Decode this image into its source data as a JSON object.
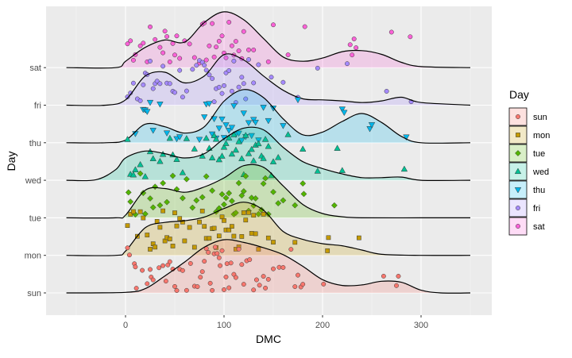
{
  "chart_data": {
    "type": "ridgeline",
    "title": "",
    "xlabel": "DMC",
    "ylabel": "Day",
    "xlim": [
      -80,
      370
    ],
    "x_ticks": [
      0,
      100,
      200,
      300
    ],
    "x_tick_labels": [
      "0",
      "100",
      "200",
      "300"
    ],
    "grid": true,
    "legend_title": "Day",
    "legend_position": "right",
    "categories": [
      "sun",
      "mon",
      "tue",
      "wed",
      "thu",
      "fri",
      "sat"
    ],
    "series": [
      {
        "name": "sun",
        "color": "#F8766D",
        "shape": "circle",
        "density_x": [
          -60,
          0,
          20,
          40,
          60,
          80,
          100,
          120,
          140,
          160,
          180,
          200,
          220,
          240,
          260,
          280,
          300,
          320,
          350
        ],
        "density_y": [
          0.0,
          0.01,
          0.08,
          0.32,
          0.58,
          0.86,
          1.0,
          0.95,
          0.85,
          0.72,
          0.5,
          0.25,
          0.14,
          0.15,
          0.22,
          0.2,
          0.05,
          0.0,
          0.0
        ],
        "points": [
          2,
          4,
          9,
          10,
          11,
          17,
          22,
          25,
          26,
          28,
          34,
          38,
          41,
          43,
          45,
          48,
          50,
          52,
          55,
          58,
          62,
          66,
          70,
          73,
          76,
          78,
          80,
          82,
          84,
          86,
          88,
          90,
          91,
          93,
          95,
          96,
          98,
          100,
          102,
          103,
          105,
          107,
          110,
          112,
          115,
          118,
          120,
          123,
          126,
          130,
          133,
          136,
          140,
          142,
          145,
          150,
          156,
          160,
          168,
          172,
          175,
          178,
          180,
          201,
          262,
          275,
          277
        ]
      },
      {
        "name": "mon",
        "color": "#C49A00",
        "shape": "square",
        "density_x": [
          -60,
          -10,
          0,
          20,
          40,
          60,
          80,
          100,
          120,
          140,
          160,
          180,
          200,
          220,
          240,
          260,
          300,
          350
        ],
        "density_y": [
          0.0,
          0.0,
          0.08,
          0.52,
          0.62,
          0.65,
          0.72,
          0.88,
          1.0,
          0.85,
          0.45,
          0.3,
          0.22,
          0.18,
          0.1,
          0.02,
          0.0,
          0.0
        ],
        "points": [
          2,
          5,
          8,
          12,
          15,
          18,
          22,
          25,
          28,
          30,
          32,
          35,
          38,
          40,
          42,
          45,
          48,
          50,
          52,
          55,
          58,
          60,
          65,
          70,
          75,
          78,
          80,
          82,
          85,
          88,
          90,
          92,
          95,
          98,
          100,
          102,
          105,
          108,
          110,
          112,
          115,
          118,
          120,
          122,
          125,
          128,
          130,
          132,
          135,
          140,
          145,
          150,
          172,
          205,
          206,
          237
        ]
      },
      {
        "name": "tue",
        "color": "#53B400",
        "shape": "diamond",
        "density_x": [
          -60,
          -10,
          0,
          20,
          40,
          60,
          80,
          100,
          120,
          140,
          160,
          180,
          200,
          220,
          240,
          300,
          350
        ],
        "density_y": [
          0.0,
          0.0,
          0.05,
          0.52,
          0.55,
          0.48,
          0.58,
          0.75,
          0.98,
          0.95,
          0.6,
          0.25,
          0.08,
          0.02,
          0.0,
          0.0,
          0.0
        ],
        "points": [
          3,
          5,
          10,
          15,
          18,
          20,
          25,
          28,
          30,
          35,
          38,
          42,
          48,
          52,
          58,
          62,
          68,
          72,
          78,
          82,
          88,
          92,
          95,
          98,
          100,
          102,
          105,
          108,
          110,
          112,
          115,
          118,
          120,
          122,
          125,
          128,
          130,
          132,
          135,
          138,
          140,
          142,
          145,
          150,
          155,
          160,
          172,
          180,
          181,
          212
        ]
      },
      {
        "name": "wed",
        "color": "#00C094",
        "shape": "triangle-up",
        "density_x": [
          -60,
          -30,
          -10,
          0,
          20,
          40,
          60,
          80,
          100,
          120,
          140,
          160,
          180,
          200,
          220,
          240,
          260,
          280,
          300,
          350
        ],
        "density_y": [
          0.0,
          0.01,
          0.2,
          0.42,
          0.55,
          0.5,
          0.42,
          0.5,
          0.78,
          0.98,
          0.95,
          0.62,
          0.35,
          0.22,
          0.12,
          0.05,
          0.05,
          0.06,
          0.0,
          0.0
        ],
        "points": [
          2,
          5,
          8,
          10,
          15,
          20,
          25,
          28,
          35,
          38,
          45,
          48,
          52,
          58,
          62,
          70,
          78,
          82,
          85,
          88,
          90,
          92,
          95,
          98,
          100,
          102,
          105,
          108,
          110,
          112,
          115,
          118,
          120,
          122,
          125,
          128,
          130,
          132,
          135,
          138,
          140,
          142,
          145,
          148,
          150,
          155,
          165,
          180,
          195,
          215,
          220,
          283
        ]
      },
      {
        "name": "thu",
        "color": "#00B6EB",
        "shape": "triangle-down",
        "density_x": [
          -60,
          -20,
          0,
          20,
          40,
          60,
          80,
          100,
          120,
          140,
          160,
          180,
          200,
          220,
          240,
          260,
          280,
          300,
          350
        ],
        "density_y": [
          0.0,
          0.0,
          0.05,
          0.35,
          0.3,
          0.18,
          0.3,
          0.78,
          1.0,
          0.85,
          0.45,
          0.15,
          0.2,
          0.4,
          0.55,
          0.38,
          0.12,
          0.0,
          0.0
        ],
        "points": [
          10,
          18,
          20,
          22,
          25,
          28,
          35,
          42,
          52,
          55,
          75,
          80,
          82,
          85,
          88,
          90,
          92,
          95,
          98,
          100,
          102,
          105,
          108,
          110,
          112,
          115,
          118,
          120,
          122,
          125,
          128,
          130,
          132,
          135,
          140,
          145,
          150,
          160,
          175,
          220,
          222,
          248,
          250,
          285
        ]
      },
      {
        "name": "fri",
        "color": "#A58AFF",
        "shape": "circle",
        "density_x": [
          -60,
          -20,
          0,
          20,
          40,
          60,
          80,
          100,
          120,
          140,
          160,
          180,
          200,
          220,
          240,
          260,
          280,
          300,
          350
        ],
        "density_y": [
          0.0,
          0.0,
          0.1,
          0.55,
          0.62,
          0.42,
          0.55,
          0.95,
          0.85,
          0.55,
          0.28,
          0.12,
          0.1,
          0.08,
          0.05,
          0.08,
          0.15,
          0.05,
          0.0
        ],
        "points": [
          2,
          5,
          8,
          12,
          15,
          18,
          20,
          22,
          25,
          28,
          30,
          32,
          35,
          38,
          42,
          45,
          48,
          50,
          55,
          58,
          62,
          68,
          72,
          75,
          78,
          80,
          82,
          85,
          88,
          90,
          92,
          95,
          98,
          100,
          102,
          105,
          108,
          110,
          112,
          115,
          118,
          120,
          122,
          125,
          130,
          135,
          148,
          160,
          175,
          195,
          225,
          265,
          290
        ]
      },
      {
        "name": "sat",
        "color": "#FB61D7",
        "shape": "circle",
        "density_x": [
          -60,
          -10,
          0,
          20,
          40,
          60,
          80,
          100,
          120,
          140,
          160,
          180,
          200,
          220,
          240,
          260,
          280,
          300,
          350
        ],
        "density_y": [
          0.0,
          0.0,
          0.12,
          0.38,
          0.52,
          0.48,
          0.85,
          1.05,
          0.9,
          0.55,
          0.2,
          0.12,
          0.18,
          0.3,
          0.32,
          0.25,
          0.1,
          0.02,
          0.0
        ],
        "points": [
          2,
          5,
          8,
          10,
          15,
          18,
          22,
          25,
          30,
          35,
          38,
          40,
          42,
          45,
          48,
          50,
          52,
          55,
          60,
          65,
          70,
          75,
          78,
          80,
          82,
          85,
          88,
          90,
          92,
          95,
          98,
          100,
          102,
          105,
          108,
          110,
          112,
          115,
          118,
          120,
          125,
          130,
          145,
          150,
          165,
          182,
          228,
          230,
          232,
          234,
          270,
          289
        ]
      }
    ]
  }
}
